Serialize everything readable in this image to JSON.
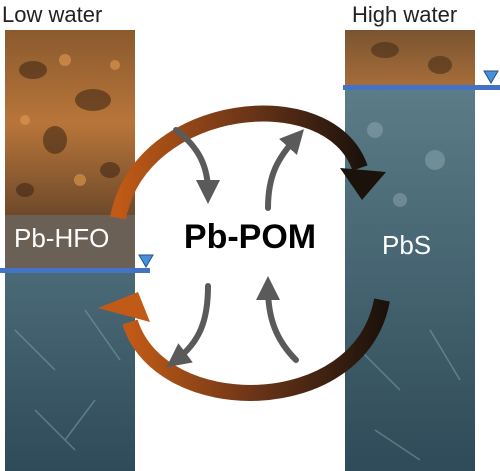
{
  "labels": {
    "low_water": "Low water",
    "high_water": "High water",
    "left_species": "Pb-HFO",
    "right_species": "PbS",
    "center_species": "Pb-POM"
  },
  "colors": {
    "water_line": "#4472c4",
    "oxic_soil": "#b0703a",
    "saturated_soil": "#3e5f6e",
    "arrow_rust": "#c05a16",
    "arrow_dark": "#2a1a12",
    "arrow_gray": "#5a5a5a"
  }
}
